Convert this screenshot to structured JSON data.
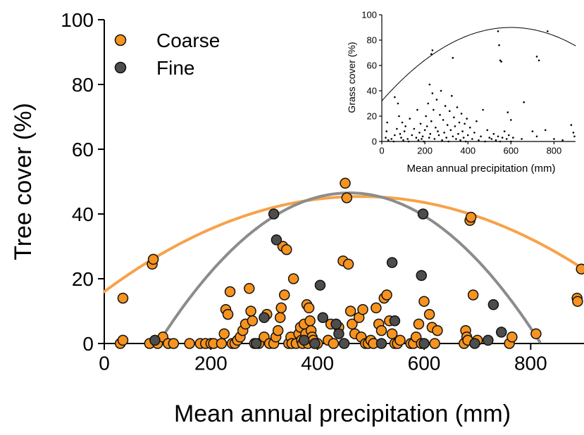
{
  "chart_data": [
    {
      "type": "scatter",
      "xlabel": "Mean annual precipitation (mm)",
      "ylabel": "Tree cover (%)",
      "xlim": [
        0,
        900
      ],
      "ylim": [
        0,
        100
      ],
      "xticks": [
        0,
        200,
        400,
        600,
        800
      ],
      "yticks": [
        0,
        20,
        40,
        60,
        80,
        100
      ],
      "legend_placement": "top-left",
      "colors": {
        "coarse": "#F7931E",
        "fine": "#4D4D4D",
        "coarse_fit": "#F7A24A",
        "fine_fit": "#8C8C8C",
        "marker_edge": "#111111"
      },
      "series": [
        {
          "name": "Coarse",
          "points": [
            [
              30,
              0
            ],
            [
              35,
              1
            ],
            [
              35,
              14
            ],
            [
              85,
              0
            ],
            [
              90,
              24.5
            ],
            [
              92,
              26
            ],
            [
              100,
              0
            ],
            [
              110,
              2
            ],
            [
              120,
              0
            ],
            [
              130,
              0
            ],
            [
              160,
              0
            ],
            [
              180,
              0
            ],
            [
              190,
              0
            ],
            [
              200,
              0
            ],
            [
              205,
              0
            ],
            [
              220,
              0
            ],
            [
              225,
              3
            ],
            [
              228,
              10.5
            ],
            [
              232,
              9
            ],
            [
              236,
              16
            ],
            [
              240,
              0
            ],
            [
              245,
              0
            ],
            [
              250,
              1
            ],
            [
              255,
              2
            ],
            [
              260,
              4
            ],
            [
              265,
              6
            ],
            [
              272,
              17
            ],
            [
              275,
              10
            ],
            [
              278,
              7
            ],
            [
              282,
              0
            ],
            [
              290,
              0
            ],
            [
              300,
              2
            ],
            [
              305,
              9
            ],
            [
              310,
              0
            ],
            [
              318,
              0
            ],
            [
              322,
              2
            ],
            [
              326,
              4
            ],
            [
              330,
              8
            ],
            [
              332,
              11
            ],
            [
              335,
              30
            ],
            [
              338,
              15
            ],
            [
              342,
              29
            ],
            [
              346,
              0
            ],
            [
              350,
              2
            ],
            [
              352,
              0
            ],
            [
              355,
              20
            ],
            [
              360,
              0
            ],
            [
              365,
              3
            ],
            [
              368,
              5
            ],
            [
              370,
              1
            ],
            [
              372,
              0
            ],
            [
              375,
              6
            ],
            [
              378,
              3
            ],
            [
              380,
              12
            ],
            [
              382,
              0
            ],
            [
              384,
              11
            ],
            [
              386,
              7
            ],
            [
              388,
              4
            ],
            [
              390,
              2
            ],
            [
              392,
              1
            ],
            [
              395,
              0
            ],
            [
              400,
              0
            ],
            [
              420,
              1
            ],
            [
              425,
              6
            ],
            [
              430,
              0
            ],
            [
              440,
              5
            ],
            [
              448,
              25.5
            ],
            [
              452,
              49.5
            ],
            [
              455,
              45
            ],
            [
              458,
              24.5
            ],
            [
              462,
              10
            ],
            [
              465,
              6
            ],
            [
              470,
              3
            ],
            [
              478,
              8
            ],
            [
              482,
              2
            ],
            [
              485,
              10.5
            ],
            [
              490,
              0
            ],
            [
              495,
              0
            ],
            [
              500,
              1
            ],
            [
              505,
              0
            ],
            [
              510,
              11
            ],
            [
              515,
              6
            ],
            [
              520,
              4
            ],
            [
              525,
              14
            ],
            [
              530,
              15
            ],
            [
              535,
              7
            ],
            [
              540,
              3
            ],
            [
              545,
              0
            ],
            [
              550,
              0
            ],
            [
              555,
              1
            ],
            [
              575,
              0
            ],
            [
              580,
              0
            ],
            [
              585,
              2
            ],
            [
              590,
              6
            ],
            [
              595,
              0
            ],
            [
              600,
              13
            ],
            [
              610,
              9
            ],
            [
              615,
              5
            ],
            [
              620,
              0
            ],
            [
              625,
              4
            ],
            [
              675,
              0
            ],
            [
              678,
              4
            ],
            [
              680,
              2
            ],
            [
              682,
              1
            ],
            [
              686,
              38
            ],
            [
              688,
              39
            ],
            [
              692,
              15
            ],
            [
              700,
              1
            ],
            [
              760,
              0
            ],
            [
              765,
              2
            ],
            [
              810,
              3
            ],
            [
              887,
              14
            ],
            [
              888,
              13
            ],
            [
              895,
              23
            ]
          ]
        },
        {
          "name": "Fine",
          "points": [
            [
              95,
              1
            ],
            [
              285,
              0
            ],
            [
              300,
              8
            ],
            [
              318,
              40
            ],
            [
              323,
              32
            ],
            [
              375,
              1
            ],
            [
              395,
              0
            ],
            [
              405,
              18
            ],
            [
              410,
              8
            ],
            [
              435,
              6
            ],
            [
              440,
              3
            ],
            [
              450,
              0
            ],
            [
              540,
              25
            ],
            [
              545,
              7
            ],
            [
              595,
              21
            ],
            [
              598,
              40
            ],
            [
              695,
              0
            ],
            [
              720,
              1
            ],
            [
              730,
              12
            ],
            [
              745,
              3.5
            ],
            [
              520,
              0
            ],
            [
              600,
              0
            ]
          ]
        }
      ],
      "fits": [
        {
          "series": "Coarse",
          "model": "quadratic",
          "a": 16.0,
          "b": 0.1225,
          "c": -0.0001276,
          "x_range": [
            0,
            900
          ]
        },
        {
          "series": "Fine",
          "model": "quadratic",
          "peak_x": 460,
          "peak_y": 46.5,
          "k": 0.000361,
          "x_range": [
            101,
            819
          ]
        }
      ]
    },
    {
      "type": "scatter",
      "xlabel": "Mean annual precipitation (mm)",
      "ylabel": "Grass cover (%)",
      "xlim": [
        0,
        900
      ],
      "ylim": [
        0,
        100
      ],
      "xticks": [
        0,
        200,
        400,
        600,
        800
      ],
      "yticks": [
        0,
        20,
        40,
        60,
        80,
        100
      ],
      "series": [
        {
          "name": "",
          "points": [
            [
              18,
              3
            ],
            [
              22,
              8
            ],
            [
              25,
              15
            ],
            [
              30,
              1
            ],
            [
              45,
              2
            ],
            [
              55,
              0
            ],
            [
              60,
              5
            ],
            [
              70,
              10
            ],
            [
              80,
              20
            ],
            [
              85,
              6
            ],
            [
              90,
              3
            ],
            [
              95,
              15
            ],
            [
              100,
              1
            ],
            [
              105,
              8
            ],
            [
              110,
              12
            ],
            [
              120,
              2
            ],
            [
              125,
              0
            ],
            [
              130,
              18
            ],
            [
              140,
              5
            ],
            [
              150,
              10
            ],
            [
              160,
              3
            ],
            [
              165,
              25
            ],
            [
              170,
              1
            ],
            [
              175,
              7
            ],
            [
              180,
              14
            ],
            [
              185,
              2
            ],
            [
              190,
              4
            ],
            [
              195,
              0
            ],
            [
              200,
              9
            ],
            [
              205,
              20
            ],
            [
              210,
              12
            ],
            [
              215,
              30
            ],
            [
              220,
              3
            ],
            [
              222,
              45
            ],
            [
              225,
              6
            ],
            [
              230,
              16
            ],
            [
              235,
              38
            ],
            [
              240,
              25
            ],
            [
              245,
              2
            ],
            [
              250,
              11
            ],
            [
              255,
              33
            ],
            [
              260,
              8
            ],
            [
              265,
              5
            ],
            [
              270,
              21
            ],
            [
              275,
              40
            ],
            [
              280,
              1
            ],
            [
              285,
              17
            ],
            [
              290,
              7
            ],
            [
              295,
              28
            ],
            [
              300,
              3
            ],
            [
              305,
              13
            ],
            [
              310,
              0
            ],
            [
              315,
              24
            ],
            [
              320,
              9
            ],
            [
              325,
              36
            ],
            [
              330,
              4
            ],
            [
              335,
              19
            ],
            [
              340,
              12
            ],
            [
              345,
              2
            ],
            [
              350,
              27
            ],
            [
              355,
              6
            ],
            [
              360,
              15
            ],
            [
              365,
              1
            ],
            [
              370,
              22
            ],
            [
              375,
              8
            ],
            [
              380,
              3
            ],
            [
              385,
              14
            ],
            [
              390,
              0
            ],
            [
              395,
              18
            ],
            [
              400,
              5
            ],
            [
              410,
              11
            ],
            [
              420,
              2
            ],
            [
              430,
              7
            ],
            [
              440,
              16
            ],
            [
              450,
              1
            ],
            [
              460,
              4
            ],
            [
              470,
              25
            ],
            [
              480,
              0
            ],
            [
              490,
              9
            ],
            [
              500,
              3
            ],
            [
              510,
              2
            ],
            [
              520,
              6
            ],
            [
              530,
              1
            ],
            [
              540,
              4
            ],
            [
              550,
              0
            ],
            [
              560,
              3
            ],
            [
              570,
              8
            ],
            [
              580,
              2
            ],
            [
              590,
              5
            ],
            [
              600,
              0
            ],
            [
              610,
              3
            ],
            [
              650,
              2
            ],
            [
              700,
              8
            ],
            [
              720,
              4
            ],
            [
              760,
              9
            ],
            [
              800,
              2
            ],
            [
              840,
              1
            ],
            [
              880,
              13
            ],
            [
              890,
              7
            ],
            [
              895,
              4
            ],
            [
              60,
              35
            ],
            [
              75,
              30
            ],
            [
              230,
              69
            ],
            [
              235,
              72
            ],
            [
              330,
              66
            ],
            [
              540,
              87
            ],
            [
              545,
              76
            ],
            [
              550,
              64
            ],
            [
              555,
              63
            ],
            [
              720,
              67
            ],
            [
              730,
              64
            ],
            [
              770,
              87
            ],
            [
              660,
              31
            ],
            [
              600,
              17
            ],
            [
              585,
              23
            ]
          ]
        }
      ],
      "fits": [
        {
          "model": "quadratic",
          "peak_x": 600,
          "peak_y": 90,
          "k": 0.0001611,
          "x_range": [
            0,
            900
          ]
        }
      ]
    }
  ]
}
